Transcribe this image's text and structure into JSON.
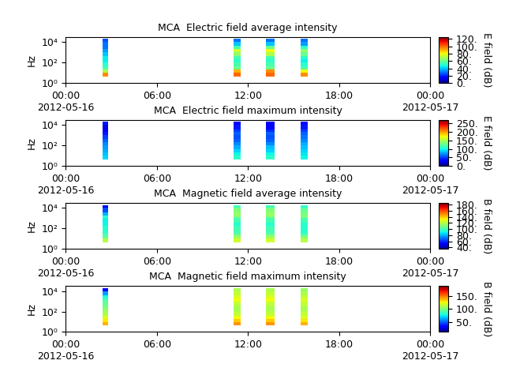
{
  "chart_data": [
    {
      "type": "heatmap",
      "title": "MCA  Electric field average intensity",
      "y_label": "Hz",
      "log": "y",
      "color": "jet",
      "xlim": [
        0,
        24
      ],
      "xticks": [
        {
          "value": 0,
          "label": "00:00\n2012-05-16"
        },
        {
          "value": 6,
          "label": "06:00"
        },
        {
          "value": 12,
          "label": "12:00"
        },
        {
          "value": 18,
          "label": "18:00"
        },
        {
          "value": 24,
          "label": "00:00\n2012-05-17"
        }
      ],
      "ylim": [
        1,
        30000
      ],
      "yticks": [
        {
          "value": 1,
          "label": "10⁰"
        },
        {
          "value": 100,
          "label": "10²"
        },
        {
          "value": 10000,
          "label": "10⁴"
        }
      ],
      "time_blocks": [
        [
          2.44,
          2.8
        ],
        [
          11.07,
          11.53
        ],
        [
          13.2,
          13.77
        ],
        [
          15.48,
          15.95
        ]
      ],
      "freq_bins": [
        4.5,
        10,
        20,
        40,
        100,
        200,
        400,
        1000,
        2000,
        4000,
        10000,
        20000
      ],
      "cells": [
        [
          95,
          70,
          55,
          50,
          45,
          45,
          40,
          35,
          30,
          30,
          25
        ],
        [
          100,
          90,
          60,
          55,
          50,
          55,
          65,
          75,
          55,
          40,
          30
        ],
        [
          100,
          95,
          60,
          55,
          50,
          55,
          70,
          80,
          60,
          40,
          30
        ],
        [
          95,
          80,
          55,
          50,
          45,
          50,
          60,
          65,
          50,
          35,
          30
        ]
      ],
      "colorbar": {
        "label": "E field (dB)",
        "range": [
          0,
          125
        ],
        "ticks": [
          {
            "value": 0,
            "label": "0."
          },
          {
            "value": 20,
            "label": "20."
          },
          {
            "value": 40,
            "label": "40."
          },
          {
            "value": 60,
            "label": "60."
          },
          {
            "value": 80,
            "label": "80."
          },
          {
            "value": 100,
            "label": "100."
          },
          {
            "value": 120,
            "label": "120."
          }
        ]
      }
    },
    {
      "type": "heatmap",
      "title": "MCA  Electric field maximum intensity",
      "y_label": "Hz",
      "log": "y",
      "color": "jet",
      "xlim": [
        0,
        24
      ],
      "xticks": [
        {
          "value": 0,
          "label": "00:00\n2012-05-16"
        },
        {
          "value": 6,
          "label": "06:00"
        },
        {
          "value": 12,
          "label": "12:00"
        },
        {
          "value": 18,
          "label": "18:00"
        },
        {
          "value": 24,
          "label": "00:00\n2012-05-17"
        }
      ],
      "ylim": [
        1,
        30000
      ],
      "yticks": [
        {
          "value": 1,
          "label": "10⁰"
        },
        {
          "value": 100,
          "label": "10²"
        },
        {
          "value": 10000,
          "label": "10⁴"
        }
      ],
      "time_blocks": [
        [
          2.44,
          2.8
        ],
        [
          11.07,
          11.53
        ],
        [
          13.2,
          13.77
        ],
        [
          15.48,
          15.95
        ]
      ],
      "freq_bins": [
        4.5,
        10,
        20,
        40,
        100,
        200,
        400,
        1000,
        2000,
        4000,
        10000,
        20000
      ],
      "cells": [
        [
          90,
          85,
          80,
          75,
          70,
          60,
          50,
          40,
          30,
          25,
          40
        ],
        [
          110,
          100,
          90,
          80,
          70,
          60,
          55,
          60,
          50,
          40,
          35
        ],
        [
          110,
          100,
          90,
          85,
          70,
          60,
          55,
          60,
          45,
          35,
          30
        ],
        [
          100,
          95,
          90,
          85,
          80,
          70,
          65,
          60,
          50,
          40,
          35
        ]
      ],
      "colorbar": {
        "label": "E field (dB)",
        "range": [
          0,
          270
        ],
        "ticks": [
          {
            "value": 0,
            "label": "0."
          },
          {
            "value": 50,
            "label": "50."
          },
          {
            "value": 100,
            "label": "100."
          },
          {
            "value": 150,
            "label": "150."
          },
          {
            "value": 200,
            "label": "200."
          },
          {
            "value": 250,
            "label": "250."
          }
        ]
      }
    },
    {
      "type": "heatmap",
      "title": "MCA  Magnetic field average intensity",
      "y_label": "Hz",
      "log": "y",
      "color": "jet",
      "xlim": [
        0,
        24
      ],
      "xticks": [
        {
          "value": 0,
          "label": "00:00\n2012-05-16"
        },
        {
          "value": 6,
          "label": "06:00"
        },
        {
          "value": 12,
          "label": "12:00"
        },
        {
          "value": 18,
          "label": "18:00"
        },
        {
          "value": 24,
          "label": "00:00\n2012-05-17"
        }
      ],
      "ylim": [
        1,
        30000
      ],
      "yticks": [
        {
          "value": 1,
          "label": "10⁰"
        },
        {
          "value": 100,
          "label": "10²"
        },
        {
          "value": 10000,
          "label": "10⁴"
        }
      ],
      "time_blocks": [
        [
          2.44,
          2.8
        ],
        [
          11.07,
          11.53
        ],
        [
          13.2,
          13.77
        ],
        [
          15.48,
          15.95
        ]
      ],
      "freq_bins": [
        4.5,
        10,
        20,
        40,
        100,
        200,
        400,
        1000,
        2000,
        4000,
        10000,
        20000
      ],
      "cells": [
        [
          120,
          105,
          100,
          95,
          95,
          90,
          90,
          95,
          80,
          65,
          50
        ],
        [
          125,
          115,
          105,
          100,
          100,
          95,
          100,
          110,
          115,
          110,
          100
        ],
        [
          125,
          115,
          105,
          100,
          100,
          95,
          100,
          110,
          115,
          110,
          100
        ],
        [
          120,
          110,
          100,
          95,
          95,
          95,
          100,
          110,
          110,
          105,
          95
        ]
      ],
      "colorbar": {
        "label": "B field (dB)",
        "range": [
          35,
          185
        ],
        "ticks": [
          {
            "value": 40,
            "label": "40."
          },
          {
            "value": 60,
            "label": "60."
          },
          {
            "value": 80,
            "label": "80."
          },
          {
            "value": 100,
            "label": "100."
          },
          {
            "value": 120,
            "label": "120."
          },
          {
            "value": 140,
            "label": "140."
          },
          {
            "value": 160,
            "label": "160."
          },
          {
            "value": 180,
            "label": "180."
          }
        ]
      }
    },
    {
      "type": "heatmap",
      "title": "MCA  Magnetic field maximum intensity",
      "y_label": "Hz",
      "log": "y",
      "color": "jet",
      "xlim": [
        0,
        24
      ],
      "xticks": [
        {
          "value": 0,
          "label": "00:00\n2012-05-16"
        },
        {
          "value": 6,
          "label": "06:00"
        },
        {
          "value": 12,
          "label": "12:00"
        },
        {
          "value": 18,
          "label": "18:00"
        },
        {
          "value": 24,
          "label": "00:00\n2012-05-17"
        }
      ],
      "ylim": [
        1,
        30000
      ],
      "yticks": [
        {
          "value": 1,
          "label": "10⁰"
        },
        {
          "value": 100,
          "label": "10²"
        },
        {
          "value": 10000,
          "label": "10⁴"
        }
      ],
      "time_blocks": [
        [
          2.44,
          2.8
        ],
        [
          11.07,
          11.53
        ],
        [
          13.2,
          13.77
        ],
        [
          15.48,
          15.95
        ]
      ],
      "freq_bins": [
        4.5,
        10,
        20,
        40,
        100,
        200,
        400,
        1000,
        2000,
        4000,
        10000,
        20000
      ],
      "cells": [
        [
          140,
          130,
          120,
          110,
          105,
          100,
          95,
          90,
          80,
          60,
          30
        ],
        [
          145,
          135,
          125,
          115,
          110,
          110,
          115,
          125,
          120,
          115,
          110
        ],
        [
          145,
          135,
          125,
          115,
          110,
          110,
          115,
          125,
          120,
          115,
          110
        ],
        [
          140,
          130,
          120,
          115,
          110,
          110,
          115,
          120,
          115,
          110,
          105
        ]
      ],
      "colorbar": {
        "label": "B field (dB)",
        "range": [
          10,
          190
        ],
        "ticks": [
          {
            "value": 50,
            "label": "50."
          },
          {
            "value": 100,
            "label": "100."
          },
          {
            "value": 150,
            "label": "150."
          }
        ]
      }
    }
  ]
}
